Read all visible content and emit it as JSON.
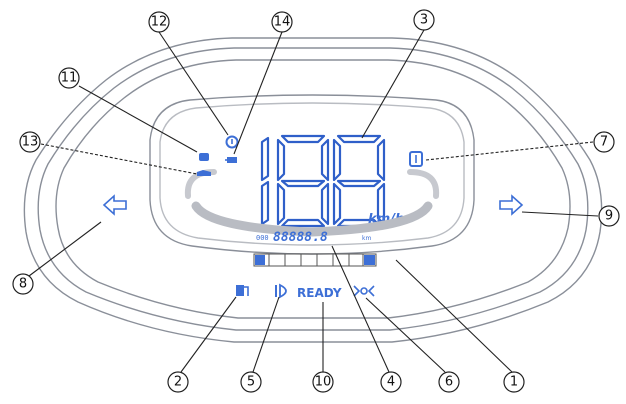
{
  "display": {
    "speed_unit": "km/h",
    "odometer_prefix": "000",
    "odometer_value": "88888.8",
    "odometer_unit": "km",
    "ready_text": "READY"
  },
  "callouts": [
    "1",
    "2",
    "3",
    "4",
    "5",
    "6",
    "7",
    "8",
    "9",
    "10",
    "11",
    "12",
    "13",
    "14"
  ],
  "icons": {
    "left_turn": "arrow-left-icon",
    "right_turn": "arrow-right-icon",
    "fuel": "fuel-pump-icon",
    "headlight": "headlight-icon",
    "position_light": "position-light-icon",
    "gear": "gear-indicator-icon",
    "engine": "engine-icon",
    "warning": "warning-icon",
    "oil": "oil-icon",
    "battery": "battery-icon"
  },
  "colors": {
    "lcd": "#3d6fd6",
    "outline": "#8a8f99"
  }
}
